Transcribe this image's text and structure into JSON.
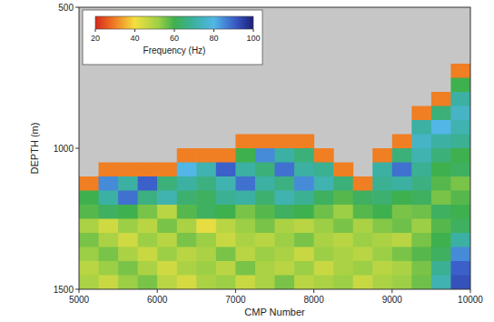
{
  "chart_data": {
    "type": "heatmap",
    "x_label": "CMP Number",
    "y_label": "DEPTH (m)",
    "xlim": [
      5000,
      10000
    ],
    "ylim": [
      1500,
      500
    ],
    "xticks": [
      5000,
      6000,
      7000,
      8000,
      9000,
      10000
    ],
    "yticks": [
      500,
      1000,
      1500
    ],
    "x_edges": [
      5000,
      5250,
      5500,
      5750,
      6000,
      6250,
      6500,
      6750,
      7000,
      7250,
      7500,
      7750,
      8000,
      8250,
      8500,
      8750,
      9000,
      9250,
      9500,
      9750,
      10000
    ],
    "y_edges": [
      500,
      550,
      600,
      650,
      700,
      750,
      800,
      850,
      900,
      950,
      1000,
      1050,
      1100,
      1150,
      1200,
      1250,
      1300,
      1350,
      1400,
      1450,
      1500
    ],
    "cells": [
      [
        null,
        null,
        null,
        null,
        null,
        null,
        null,
        null,
        null,
        null,
        null,
        null,
        null,
        null,
        null,
        null,
        null,
        null,
        null,
        null
      ],
      [
        null,
        null,
        null,
        null,
        null,
        null,
        null,
        null,
        null,
        null,
        null,
        null,
        null,
        null,
        null,
        null,
        null,
        null,
        null,
        null
      ],
      [
        null,
        null,
        null,
        null,
        null,
        null,
        null,
        null,
        null,
        null,
        null,
        null,
        null,
        null,
        null,
        null,
        null,
        null,
        null,
        null
      ],
      [
        null,
        null,
        null,
        null,
        null,
        null,
        null,
        null,
        null,
        null,
        null,
        null,
        null,
        null,
        null,
        null,
        null,
        null,
        null,
        null
      ],
      [
        null,
        null,
        null,
        null,
        null,
        null,
        null,
        null,
        null,
        null,
        null,
        null,
        null,
        null,
        null,
        null,
        null,
        null,
        null,
        30
      ],
      [
        null,
        null,
        null,
        null,
        null,
        null,
        null,
        null,
        null,
        null,
        null,
        null,
        null,
        null,
        null,
        null,
        null,
        null,
        null,
        60
      ],
      [
        null,
        null,
        null,
        null,
        null,
        null,
        null,
        null,
        null,
        null,
        null,
        null,
        null,
        null,
        null,
        null,
        null,
        null,
        30,
        70
      ],
      [
        null,
        null,
        null,
        null,
        null,
        null,
        null,
        null,
        null,
        null,
        null,
        null,
        null,
        null,
        null,
        null,
        null,
        30,
        65,
        75
      ],
      [
        null,
        null,
        null,
        null,
        null,
        null,
        null,
        null,
        null,
        null,
        null,
        null,
        null,
        null,
        null,
        null,
        null,
        70,
        80,
        72
      ],
      [
        null,
        null,
        null,
        null,
        null,
        null,
        null,
        null,
        30,
        30,
        30,
        30,
        null,
        null,
        null,
        null,
        30,
        75,
        70,
        68
      ],
      [
        null,
        null,
        null,
        null,
        null,
        30,
        30,
        30,
        60,
        85,
        70,
        65,
        30,
        null,
        null,
        30,
        65,
        72,
        65,
        60
      ],
      [
        null,
        30,
        30,
        30,
        30,
        80,
        72,
        90,
        70,
        65,
        88,
        70,
        68,
        30,
        null,
        70,
        88,
        68,
        60,
        62
      ],
      [
        30,
        85,
        70,
        90,
        65,
        70,
        66,
        72,
        88,
        70,
        66,
        85,
        72,
        65,
        30,
        68,
        70,
        66,
        58,
        55
      ],
      [
        60,
        70,
        88,
        66,
        72,
        64,
        62,
        68,
        70,
        64,
        72,
        68,
        62,
        58,
        62,
        64,
        60,
        62,
        55,
        58
      ],
      [
        58,
        62,
        60,
        55,
        48,
        58,
        62,
        60,
        55,
        58,
        62,
        60,
        56,
        52,
        58,
        60,
        55,
        56,
        62,
        60
      ],
      [
        50,
        45,
        52,
        48,
        55,
        50,
        42,
        48,
        52,
        55,
        50,
        48,
        52,
        55,
        50,
        54,
        56,
        52,
        58,
        62
      ],
      [
        55,
        50,
        45,
        52,
        48,
        55,
        52,
        46,
        50,
        48,
        52,
        55,
        50,
        48,
        52,
        50,
        48,
        55,
        60,
        70
      ],
      [
        52,
        55,
        50,
        46,
        52,
        48,
        50,
        55,
        48,
        52,
        50,
        46,
        52,
        50,
        48,
        52,
        55,
        58,
        62,
        85
      ],
      [
        48,
        52,
        55,
        50,
        45,
        50,
        52,
        48,
        55,
        50,
        48,
        52,
        46,
        50,
        52,
        48,
        50,
        55,
        68,
        90
      ],
      [
        50,
        46,
        52,
        55,
        48,
        44,
        50,
        52,
        46,
        50,
        55,
        48,
        50,
        52,
        46,
        50,
        52,
        56,
        72,
        92
      ]
    ],
    "colorbar": {
      "label": "Frequency (Hz)",
      "range": [
        20,
        100
      ],
      "ticks": [
        20,
        40,
        60,
        80,
        100
      ]
    }
  }
}
